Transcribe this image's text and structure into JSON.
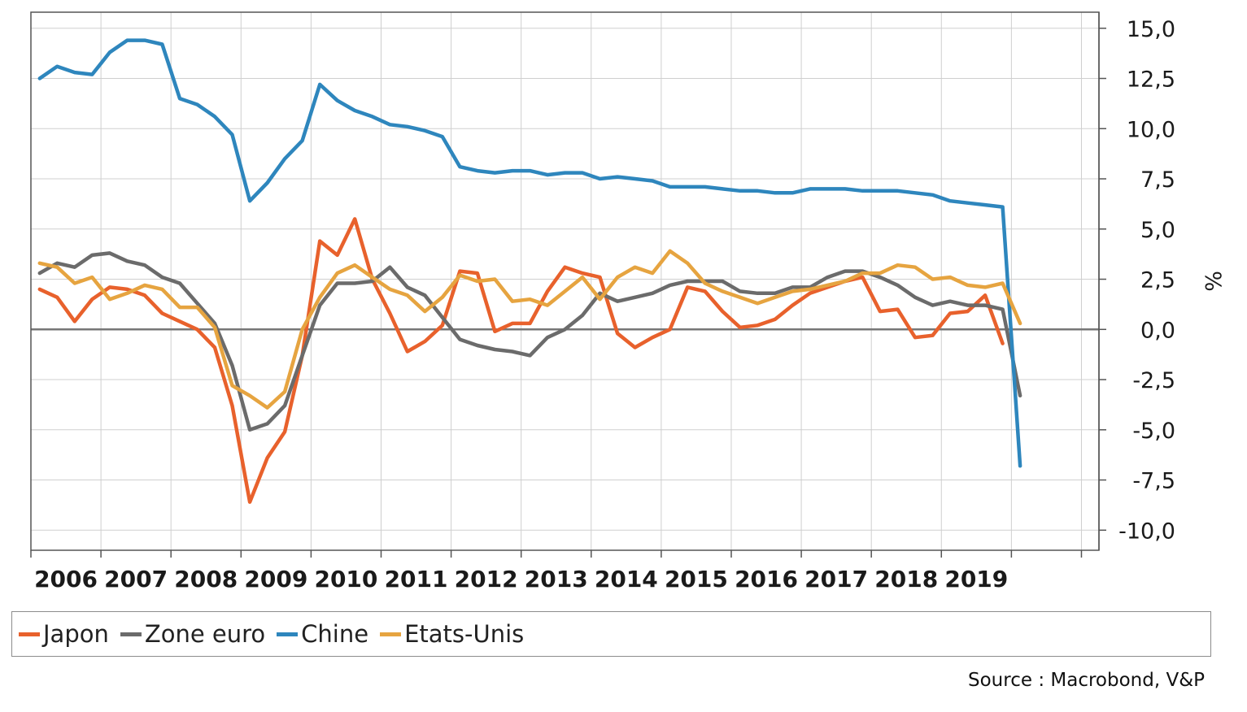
{
  "chart_data": {
    "type": "line",
    "title": "",
    "xlabel": "",
    "ylabel": "%",
    "ylim": [
      -11,
      15.8
    ],
    "y_ticks": [
      15.0,
      12.5,
      10.0,
      7.5,
      5.0,
      2.5,
      0.0,
      -2.5,
      -5.0,
      -7.5,
      -10.0
    ],
    "y_tick_labels": [
      "15,0",
      "12,5",
      "10,0",
      "7,5",
      "5,0",
      "2,5",
      "0,0",
      "-2,5",
      "-5,0",
      "-7,5",
      "-10,0"
    ],
    "x_range": [
      2005.0,
      2020.25
    ],
    "x_tick_labels": [
      "2006",
      "2007",
      "2008",
      "2009",
      "2010",
      "2011",
      "2012",
      "2013",
      "2014",
      "2015",
      "2016",
      "2017",
      "2018",
      "2019"
    ],
    "x_tick_positions": [
      2005.5,
      2006.5,
      2007.5,
      2008.5,
      2009.5,
      2010.5,
      2011.5,
      2012.5,
      2013.5,
      2014.5,
      2015.5,
      2016.5,
      2017.5,
      2018.5
    ],
    "x_start_quarter": "2005-Q1",
    "grid": true,
    "legend_placement": "bottom",
    "series": [
      {
        "name": "Japon",
        "color": "#e8612c",
        "values": [
          2.0,
          1.6,
          0.4,
          1.5,
          2.1,
          2.0,
          1.7,
          0.8,
          0.4,
          0.0,
          -0.9,
          -3.8,
          -8.6,
          -6.4,
          -5.1,
          -1.3,
          4.4,
          3.7,
          5.5,
          2.5,
          0.8,
          -1.1,
          -0.6,
          0.2,
          2.9,
          2.8,
          -0.1,
          0.3,
          0.3,
          1.9,
          3.1,
          2.8,
          2.6,
          -0.2,
          -0.9,
          -0.4,
          0.0,
          2.1,
          1.9,
          0.9,
          0.1,
          0.2,
          0.5,
          1.2,
          1.8,
          2.1,
          2.4,
          2.6,
          0.9,
          1.0,
          -0.4,
          -0.3,
          0.8,
          0.9,
          1.7,
          -0.7
        ]
      },
      {
        "name": "Zone euro",
        "color": "#6b6b6b",
        "values": [
          2.8,
          3.3,
          3.1,
          3.7,
          3.8,
          3.4,
          3.2,
          2.6,
          2.3,
          1.3,
          0.3,
          -1.8,
          -5.0,
          -4.7,
          -3.8,
          -1.3,
          1.2,
          2.3,
          2.3,
          2.4,
          3.1,
          2.1,
          1.7,
          0.6,
          -0.5,
          -0.8,
          -1.0,
          -1.1,
          -1.3,
          -0.4,
          0.0,
          0.7,
          1.8,
          1.4,
          1.6,
          1.8,
          2.2,
          2.4,
          2.4,
          2.4,
          1.9,
          1.8,
          1.8,
          2.1,
          2.1,
          2.6,
          2.9,
          2.9,
          2.6,
          2.2,
          1.6,
          1.2,
          1.4,
          1.2,
          1.2,
          1.0,
          -3.3
        ]
      },
      {
        "name": "Chine",
        "color": "#2e86bd",
        "values": [
          12.5,
          13.1,
          12.8,
          12.7,
          13.8,
          14.4,
          14.4,
          14.2,
          11.5,
          11.2,
          10.6,
          9.7,
          6.4,
          7.3,
          8.5,
          9.4,
          12.2,
          11.4,
          10.9,
          10.6,
          10.2,
          10.1,
          9.9,
          9.6,
          8.1,
          7.9,
          7.8,
          7.9,
          7.9,
          7.7,
          7.8,
          7.8,
          7.5,
          7.6,
          7.5,
          7.4,
          7.1,
          7.1,
          7.1,
          7.0,
          6.9,
          6.9,
          6.8,
          6.8,
          7.0,
          7.0,
          7.0,
          6.9,
          6.9,
          6.9,
          6.8,
          6.7,
          6.4,
          6.3,
          6.2,
          6.1,
          -6.8
        ]
      },
      {
        "name": "Etats-Unis",
        "color": "#e6a440",
        "values": [
          3.3,
          3.1,
          2.3,
          2.6,
          1.5,
          1.8,
          2.2,
          2.0,
          1.1,
          1.1,
          0.1,
          -2.8,
          -3.3,
          -3.9,
          -3.1,
          0.0,
          1.6,
          2.8,
          3.2,
          2.6,
          2.0,
          1.7,
          0.9,
          1.6,
          2.7,
          2.4,
          2.5,
          1.4,
          1.5,
          1.2,
          1.9,
          2.6,
          1.5,
          2.6,
          3.1,
          2.8,
          3.9,
          3.3,
          2.3,
          1.9,
          1.6,
          1.3,
          1.6,
          1.9,
          2.0,
          2.2,
          2.4,
          2.8,
          2.8,
          3.2,
          3.1,
          2.5,
          2.6,
          2.2,
          2.1,
          2.3,
          0.3
        ]
      }
    ],
    "legend_entries": [
      "Japon",
      "Zone euro",
      "Chine",
      "Etats-Unis"
    ],
    "source": "Source : Macrobond, V&P"
  }
}
